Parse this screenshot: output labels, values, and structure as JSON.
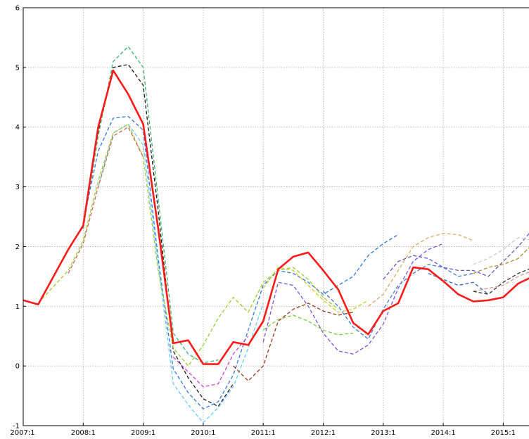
{
  "chart_data": {
    "type": "line",
    "title": "",
    "xlabel": "",
    "ylabel": "",
    "xlim": [
      "2007:1",
      "2015:4"
    ],
    "ylim": [
      -1,
      6
    ],
    "grid": true,
    "legend": "none",
    "x_ticks": [
      "2007:1",
      "2008:1",
      "2009:1",
      "2010:1",
      "2011:1",
      "2012:1",
      "2013:1",
      "2014:1",
      "2015:1"
    ],
    "y_ticks": [
      "-1",
      "0",
      "1",
      "2",
      "3",
      "4",
      "5",
      "6"
    ],
    "series": [
      {
        "color": "#ff1a1a",
        "style": "solid",
        "points": [
          [
            "2007:1",
            1.1
          ],
          [
            "2007:2",
            1.03
          ],
          [
            "2007:4",
            1.95
          ],
          [
            "2008:1",
            2.35
          ],
          [
            "2008:2",
            4.0
          ],
          [
            "2008:3",
            4.95
          ],
          [
            "2008:4",
            4.55
          ],
          [
            "2009:1",
            4.05
          ],
          [
            "2009:2",
            2.3
          ],
          [
            "2009:3",
            0.38
          ],
          [
            "2009:4",
            0.43
          ],
          [
            "2010:1",
            0.03
          ],
          [
            "2010:2",
            0.03
          ],
          [
            "2010:3",
            0.4
          ],
          [
            "2010:4",
            0.35
          ],
          [
            "2011:1",
            0.75
          ],
          [
            "2011:2",
            1.62
          ],
          [
            "2011:3",
            1.83
          ],
          [
            "2011:4",
            1.9
          ],
          [
            "2012:1",
            1.6
          ],
          [
            "2012:2",
            1.28
          ],
          [
            "2012:3",
            0.72
          ],
          [
            "2012:4",
            0.53
          ],
          [
            "2013:1",
            0.92
          ],
          [
            "2013:2",
            1.05
          ],
          [
            "2013:3",
            1.65
          ],
          [
            "2013:4",
            1.62
          ],
          [
            "2014:1",
            1.42
          ],
          [
            "2014:2",
            1.2
          ],
          [
            "2014:3",
            1.08
          ],
          [
            "2014:4",
            1.1
          ],
          [
            "2015:1",
            1.15
          ],
          [
            "2015:2",
            1.38
          ],
          [
            "2015:3",
            1.5
          ],
          [
            "2015:4",
            1.45
          ]
        ]
      },
      {
        "color": "#1a1a1a",
        "style": "dashed",
        "points": [
          [
            "2008:1",
            2.3
          ],
          [
            "2008:2",
            3.9
          ],
          [
            "2008:3",
            5.0
          ],
          [
            "2008:4",
            5.05
          ],
          [
            "2009:1",
            4.7
          ],
          [
            "2009:2",
            2.6
          ],
          [
            "2009:3",
            0.25
          ],
          [
            "2009:4",
            -0.2
          ],
          [
            "2010:1",
            -0.55
          ],
          [
            "2010:2",
            -0.68
          ],
          [
            "2010:3",
            -0.3
          ]
        ]
      },
      {
        "color": "#3cb371",
        "style": "dashed",
        "points": [
          [
            "2008:1",
            2.3
          ],
          [
            "2008:2",
            3.85
          ],
          [
            "2008:3",
            5.1
          ],
          [
            "2008:4",
            5.35
          ],
          [
            "2009:1",
            5.0
          ],
          [
            "2009:2",
            2.8
          ],
          [
            "2009:3",
            0.55
          ],
          [
            "2009:4",
            0.2
          ],
          [
            "2010:1",
            0.05
          ],
          [
            "2010:2",
            0.1
          ]
        ]
      },
      {
        "color": "#3377dd",
        "style": "dashed",
        "points": [
          [
            "2008:1",
            2.4
          ],
          [
            "2008:2",
            3.6
          ],
          [
            "2008:3",
            4.15
          ],
          [
            "2008:4",
            4.18
          ],
          [
            "2009:1",
            3.95
          ],
          [
            "2009:2",
            1.8
          ],
          [
            "2009:3",
            -0.05
          ],
          [
            "2009:4",
            -0.45
          ],
          [
            "2010:1",
            -0.72
          ],
          [
            "2010:2",
            -0.6
          ],
          [
            "2010:3",
            -0.15
          ],
          [
            "2010:4",
            0.6
          ],
          [
            "2011:1",
            1.35
          ],
          [
            "2011:2",
            1.6
          ],
          [
            "2011:3",
            1.55
          ],
          [
            "2011:4",
            1.4
          ],
          [
            "2012:1",
            1.2
          ],
          [
            "2012:2",
            1.35
          ],
          [
            "2012:3",
            1.5
          ],
          [
            "2012:4",
            1.85
          ],
          [
            "2013:1",
            2.05
          ],
          [
            "2013:2",
            2.2
          ]
        ]
      },
      {
        "color": "#66ccff",
        "style": "dashed",
        "points": [
          [
            "2008:2",
            3.0
          ],
          [
            "2008:3",
            3.9
          ],
          [
            "2008:4",
            4.05
          ],
          [
            "2009:1",
            3.7
          ],
          [
            "2009:2",
            1.7
          ],
          [
            "2009:3",
            -0.3
          ],
          [
            "2009:4",
            -0.65
          ],
          [
            "2010:1",
            -0.95
          ],
          [
            "2010:2",
            -0.7
          ],
          [
            "2010:3",
            -0.35
          ],
          [
            "2010:4",
            0.3
          ],
          [
            "2011:1",
            1.05
          ]
        ]
      },
      {
        "color": "#99cc33",
        "style": "dashed",
        "points": [
          [
            "2007:2",
            1.05
          ],
          [
            "2007:4",
            1.6
          ],
          [
            "2008:1",
            2.1
          ],
          [
            "2008:2",
            3.1
          ],
          [
            "2008:3",
            3.9
          ],
          [
            "2008:4",
            4.05
          ],
          [
            "2009:1",
            3.5
          ],
          [
            "2009:2",
            1.6
          ],
          [
            "2009:3",
            0.3
          ],
          [
            "2009:4",
            0.0
          ],
          [
            "2010:1",
            0.35
          ],
          [
            "2010:2",
            0.8
          ],
          [
            "2010:3",
            1.15
          ],
          [
            "2010:4",
            0.9
          ],
          [
            "2011:1",
            1.4
          ],
          [
            "2011:2",
            1.6
          ],
          [
            "2011:3",
            1.65
          ],
          [
            "2011:4",
            1.45
          ],
          [
            "2012:1",
            1.15
          ],
          [
            "2012:2",
            0.95
          ]
        ]
      },
      {
        "color": "#cc6655",
        "style": "dashed",
        "points": [
          [
            "2007:4",
            1.55
          ],
          [
            "2008:1",
            2.05
          ],
          [
            "2008:2",
            3.0
          ],
          [
            "2008:3",
            3.85
          ],
          [
            "2008:4",
            4.0
          ],
          [
            "2009:1",
            3.5
          ]
        ]
      },
      {
        "color": "#cc44cc",
        "style": "dashed",
        "points": [
          [
            "2009:3",
            0.15
          ],
          [
            "2009:4",
            -0.1
          ],
          [
            "2010:1",
            -0.35
          ],
          [
            "2010:2",
            -0.3
          ],
          [
            "2010:3",
            0.2
          ],
          [
            "2010:4",
            0.5
          ]
        ]
      },
      {
        "color": "#9a3a1a",
        "style": "dashed",
        "points": [
          [
            "2010:3",
            0.0
          ],
          [
            "2010:4",
            -0.25
          ],
          [
            "2011:1",
            0.0
          ],
          [
            "2011:2",
            0.75
          ],
          [
            "2011:3",
            0.95
          ],
          [
            "2011:4",
            1.05
          ],
          [
            "2012:1",
            0.92
          ],
          [
            "2012:2",
            0.85
          ],
          [
            "2012:3",
            0.9
          ]
        ]
      },
      {
        "color": "#77cc44",
        "style": "dashed",
        "points": [
          [
            "2011:1",
            0.6
          ],
          [
            "2011:2",
            0.78
          ],
          [
            "2011:3",
            0.85
          ],
          [
            "2011:4",
            0.75
          ],
          [
            "2012:1",
            0.6
          ],
          [
            "2012:2",
            0.52
          ],
          [
            "2012:3",
            0.55
          ]
        ]
      },
      {
        "color": "#cccc22",
        "style": "dashed",
        "points": [
          [
            "2011:1",
            1.3
          ],
          [
            "2011:2",
            1.65
          ],
          [
            "2011:3",
            1.6
          ],
          [
            "2011:4",
            1.35
          ],
          [
            "2012:1",
            1.1
          ],
          [
            "2012:2",
            0.9
          ],
          [
            "2012:3",
            0.95
          ],
          [
            "2012:4",
            1.1
          ]
        ]
      },
      {
        "color": "#7755dd",
        "style": "dashed",
        "points": [
          [
            "2011:1",
            0.4
          ],
          [
            "2011:2",
            1.4
          ],
          [
            "2011:3",
            1.35
          ],
          [
            "2011:4",
            1.0
          ],
          [
            "2012:1",
            0.55
          ],
          [
            "2012:2",
            0.25
          ],
          [
            "2012:3",
            0.2
          ],
          [
            "2012:4",
            0.35
          ],
          [
            "2013:1",
            0.7
          ],
          [
            "2013:2",
            1.3
          ],
          [
            "2013:3",
            1.75
          ],
          [
            "2013:4",
            1.95
          ],
          [
            "2014:1",
            2.05
          ]
        ]
      },
      {
        "color": "#4477dd",
        "style": "dashed",
        "points": [
          [
            "2012:1",
            1.25
          ],
          [
            "2012:2",
            1.0
          ],
          [
            "2012:3",
            0.65
          ],
          [
            "2012:4",
            0.45
          ],
          [
            "2013:1",
            0.95
          ],
          [
            "2013:2",
            1.35
          ],
          [
            "2013:3",
            1.55
          ],
          [
            "2013:4",
            1.7
          ],
          [
            "2014:1",
            1.65
          ],
          [
            "2014:2",
            1.5
          ],
          [
            "2014:3",
            1.55
          ]
        ]
      },
      {
        "color": "#ddaa66",
        "style": "dashed",
        "points": [
          [
            "2012:4",
            1.0
          ],
          [
            "2013:1",
            1.2
          ],
          [
            "2013:2",
            1.6
          ],
          [
            "2013:3",
            2.0
          ],
          [
            "2013:4",
            2.15
          ],
          [
            "2014:1",
            2.22
          ],
          [
            "2014:2",
            2.2
          ],
          [
            "2014:3",
            2.1
          ]
        ]
      },
      {
        "color": "#6655cc",
        "style": "dashed",
        "points": [
          [
            "2013:1",
            1.45
          ],
          [
            "2013:2",
            1.75
          ],
          [
            "2013:3",
            1.85
          ],
          [
            "2013:4",
            1.8
          ],
          [
            "2014:1",
            1.65
          ],
          [
            "2014:2",
            1.6
          ],
          [
            "2014:3",
            1.6
          ],
          [
            "2014:4",
            1.5
          ],
          [
            "2015:1",
            1.75
          ],
          [
            "2015:2",
            2.0
          ],
          [
            "2015:3",
            2.3
          ],
          [
            "2015:4",
            2.2
          ]
        ]
      },
      {
        "color": "#3366bb",
        "style": "dashed",
        "points": [
          [
            "2013:4",
            1.55
          ],
          [
            "2014:1",
            1.45
          ],
          [
            "2014:2",
            1.35
          ],
          [
            "2014:3",
            1.4
          ],
          [
            "2014:4",
            1.2
          ]
        ]
      },
      {
        "color": "#cccccc",
        "style": "dashed",
        "points": [
          [
            "2014:3",
            1.7
          ],
          [
            "2014:4",
            1.8
          ],
          [
            "2015:1",
            1.95
          ],
          [
            "2015:2",
            2.15
          ],
          [
            "2015:3",
            2.1
          ],
          [
            "2015:4",
            1.95
          ]
        ]
      },
      {
        "color": "#bb8833",
        "style": "dashed",
        "points": [
          [
            "2014:3",
            1.55
          ],
          [
            "2014:4",
            1.65
          ],
          [
            "2015:1",
            1.7
          ],
          [
            "2015:2",
            1.8
          ],
          [
            "2015:3",
            2.05
          ],
          [
            "2015:4",
            2.15
          ]
        ]
      },
      {
        "color": "#dd9988",
        "style": "dashed",
        "points": [
          [
            "2014:3",
            1.25
          ],
          [
            "2014:4",
            1.3
          ],
          [
            "2015:1",
            1.35
          ],
          [
            "2015:2",
            1.5
          ],
          [
            "2015:3",
            1.6
          ]
        ]
      },
      {
        "color": "#333333",
        "style": "dashed",
        "points": [
          [
            "2014:3",
            1.25
          ],
          [
            "2014:4",
            1.2
          ],
          [
            "2015:1",
            1.4
          ],
          [
            "2015:2",
            1.55
          ],
          [
            "2015:3",
            1.65
          ],
          [
            "2015:4",
            1.6
          ]
        ]
      }
    ]
  }
}
